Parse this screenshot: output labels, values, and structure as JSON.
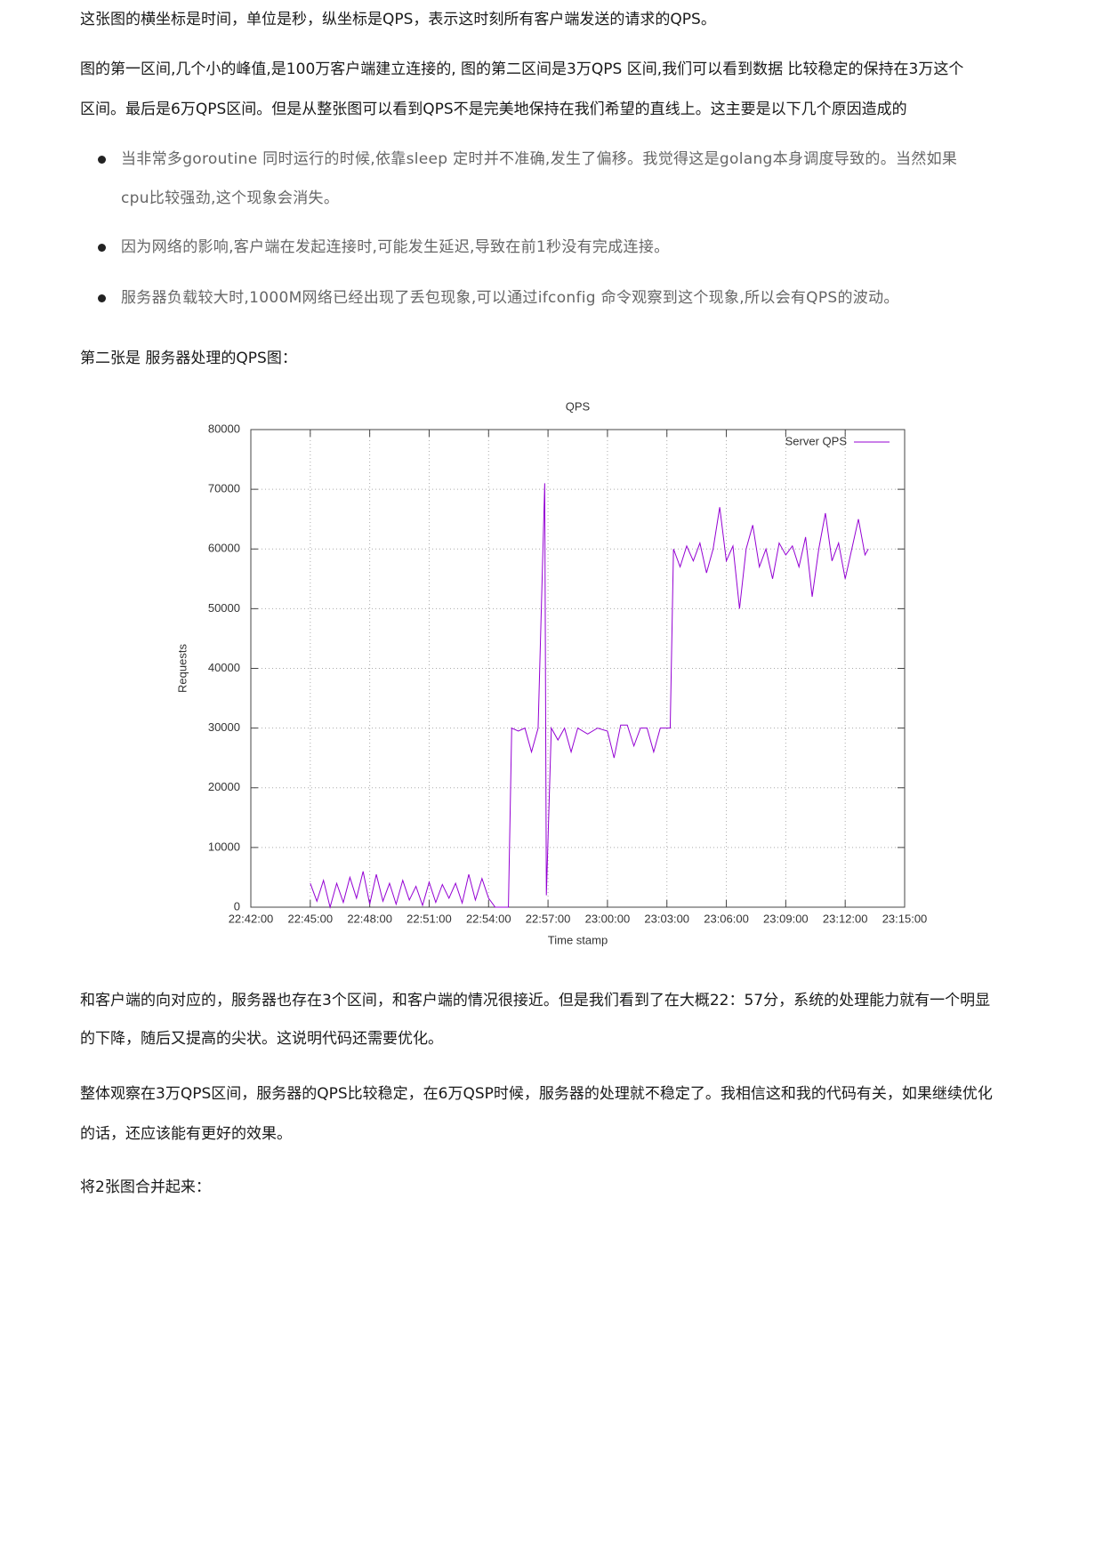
{
  "paragraphs_top": [
    [
      "这张图的横坐标是时间，单位是秒，纵坐标是QPS，表示这时刻所有客户端发送的请求的QPS。"
    ],
    [
      "图的第一区间,几个小的峰值,是100万客户端建立连接的, 图的第二区间是3万QPS 区间,我们可以看到数据 比较稳定的保持在3万这个",
      "区间。最后是6万QPS区间。但是从整张图可以看到QPS不是完美地保持在我们希望的直线上。这主要是以下几个原因造成的"
    ]
  ],
  "bullets": [
    [
      "当非常多goroutine 同时运行的时候,依靠sleep 定时并不准确,发生了偏移。我觉得这是golang本身调度导致的。当然如果",
      "cpu比较强劲,这个现象会消失。"
    ],
    [
      "因为网络的影响,客户端在发起连接时,可能发生延迟,导致在前1秒没有完成连接。"
    ],
    [
      "服务器负载较大时,1000M网络已经出现了丢包现象,可以通过ifconfig 命令观察到这个现象,所以会有QPS的波动。"
    ]
  ],
  "caption": "第二张是 服务器处理的QPS图：",
  "chart_data": {
    "type": "line",
    "title": "QPS",
    "x_label": "Time stamp",
    "y_label": "Requests",
    "xlim": [
      "22:42:00",
      "23:15:00"
    ],
    "xticks": [
      "22:42:00",
      "22:45:00",
      "22:48:00",
      "22:51:00",
      "22:54:00",
      "22:57:00",
      "23:00:00",
      "23:03:00",
      "23:06:00",
      "23:09:00",
      "23:12:00",
      "23:15:00"
    ],
    "ylim": [
      0,
      80000
    ],
    "yticks": [
      0,
      10000,
      20000,
      30000,
      40000,
      50000,
      60000,
      70000,
      80000
    ],
    "grid": true,
    "legend": "top-right",
    "x": [
      "22:45:00",
      "22:45:20",
      "22:45:40",
      "22:46:00",
      "22:46:20",
      "22:46:40",
      "22:47:00",
      "22:47:20",
      "22:47:40",
      "22:48:00",
      "22:48:20",
      "22:48:40",
      "22:49:00",
      "22:49:20",
      "22:49:40",
      "22:50:00",
      "22:50:20",
      "22:50:40",
      "22:51:00",
      "22:51:20",
      "22:51:40",
      "22:52:00",
      "22:52:20",
      "22:52:40",
      "22:53:00",
      "22:53:20",
      "22:53:40",
      "22:54:00",
      "22:54:20",
      "22:55:00",
      "22:55:10",
      "22:55:30",
      "22:55:50",
      "22:56:10",
      "22:56:30",
      "22:56:50",
      "22:56:55",
      "22:57:10",
      "22:57:30",
      "22:57:50",
      "22:58:10",
      "22:58:30",
      "22:59:00",
      "22:59:30",
      "23:00:00",
      "23:00:20",
      "23:00:40",
      "23:01:00",
      "23:01:20",
      "23:01:40",
      "23:02:00",
      "23:02:20",
      "23:02:40",
      "23:03:10",
      "23:03:20",
      "23:03:40",
      "23:04:00",
      "23:04:20",
      "23:04:40",
      "23:05:00",
      "23:05:20",
      "23:05:40",
      "23:06:00",
      "23:06:20",
      "23:06:40",
      "23:07:00",
      "23:07:20",
      "23:07:40",
      "23:08:00",
      "23:08:20",
      "23:08:40",
      "23:09:00",
      "23:09:20",
      "23:09:40",
      "23:10:00",
      "23:10:20",
      "23:10:40",
      "23:11:00",
      "23:11:20",
      "23:11:40",
      "23:12:00",
      "23:12:20",
      "23:12:40",
      "23:13:00",
      "23:13:10"
    ],
    "series": [
      {
        "name": "Server QPS",
        "color": "#9400d3",
        "values": [
          4000,
          1000,
          4500,
          0,
          4000,
          800,
          5000,
          1500,
          6000,
          500,
          5500,
          1000,
          4000,
          500,
          4500,
          1200,
          3500,
          300,
          4200,
          800,
          3800,
          1500,
          4000,
          700,
          5500,
          1200,
          4800,
          1500,
          0,
          0,
          30000,
          29500,
          30000,
          26000,
          30000,
          71000,
          2000,
          30000,
          28000,
          30000,
          26000,
          30000,
          29000,
          30000,
          29500,
          25000,
          30500,
          30500,
          27000,
          30000,
          30000,
          26000,
          30000,
          30000,
          60000,
          57000,
          60500,
          58000,
          61000,
          56000,
          60000,
          67000,
          58000,
          60500,
          50000,
          60000,
          64000,
          57000,
          60000,
          55000,
          61000,
          59000,
          60500,
          57000,
          62000,
          52000,
          60000,
          66000,
          58000,
          61000,
          55000,
          60000,
          65000,
          59000,
          60000
        ]
      }
    ]
  },
  "paragraphs_bottom": [
    [
      "和客户端的向对应的，服务器也存在3个区间，和客户端的情况很接近。但是我们看到了在大概22：57分，系统的处理能力就有一个明显",
      "的下降，随后又提高的尖状。这说明代码还需要优化。"
    ],
    [
      "整体观察在3万QPS区间，服务器的QPS比较稳定，在6万QSP时候，服务器的处理就不稳定了。我相信这和我的代码有关，如果继续优化",
      "的话，还应该能有更好的效果。"
    ],
    [
      "将2张图合并起来："
    ]
  ]
}
